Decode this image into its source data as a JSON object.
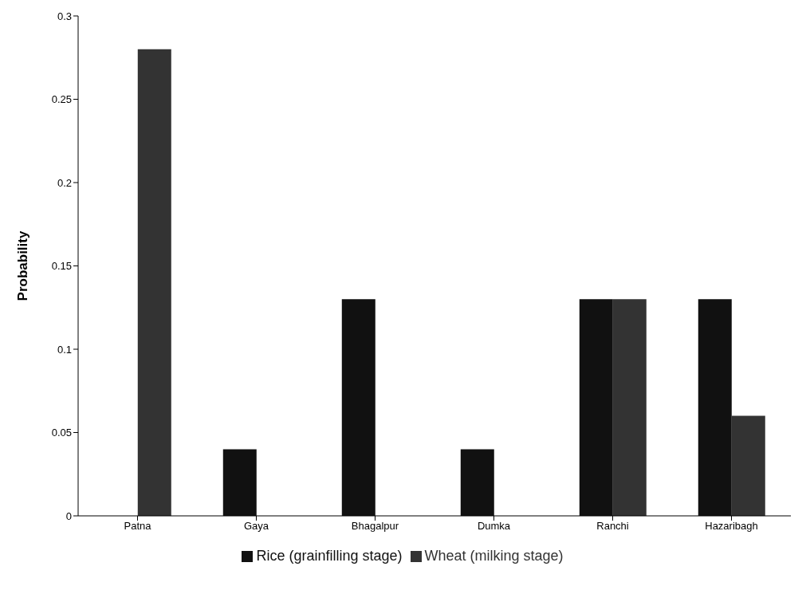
{
  "chart_data": {
    "type": "bar",
    "ylabel": "Probability",
    "categories": [
      "Patna",
      "Gaya",
      "Bhagalpur",
      "Dumka",
      "Ranchi",
      "Hazaribagh"
    ],
    "series": [
      {
        "name": "Rice (grainfilling stage)",
        "color": "#111111",
        "values": [
          0,
          0.04,
          0.13,
          0.04,
          0.13,
          0.13
        ]
      },
      {
        "name": "Wheat (milking stage)",
        "color": "#333333",
        "values": [
          0.28,
          0,
          0,
          0,
          0.13,
          0.06
        ]
      }
    ],
    "ylim": [
      0,
      0.3
    ],
    "yticks": [
      0,
      0.05,
      0.1,
      0.15,
      0.2,
      0.25,
      0.3
    ],
    "grid": false,
    "legend": "bottom"
  }
}
